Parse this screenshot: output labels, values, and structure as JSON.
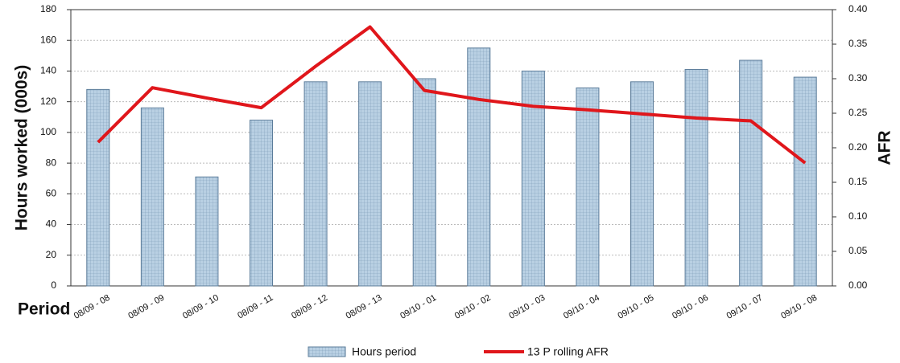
{
  "chart_data": {
    "type": "combo",
    "x_label": "Period",
    "y_label": "Hours worked (000s)",
    "y2_label": "AFR",
    "categories": [
      "08/09 - 08",
      "08/09 - 09",
      "08/09 - 10",
      "08/09 - 11",
      "08/09 - 12",
      "08/09 - 13",
      "09/10 - 01",
      "09/10 - 02",
      "09/10 - 03",
      "09/10 - 04",
      "09/10 - 05",
      "09/10 - 06",
      "09/10 - 07",
      "09/10 - 08"
    ],
    "series": [
      {
        "name": "Hours period",
        "type": "bar",
        "color": "#b9d0e3",
        "values": [
          128,
          116,
          71,
          108,
          133,
          133,
          135,
          155,
          140,
          129,
          133,
          141,
          147,
          136
        ]
      },
      {
        "name": "13 P rolling AFR",
        "type": "line",
        "axis": "y2",
        "color": "#e0161b",
        "values": [
          0.208,
          0.287,
          0.272,
          0.258,
          0.318,
          0.375,
          0.283,
          0.27,
          0.26,
          0.255,
          0.249,
          0.243,
          0.239,
          0.178
        ]
      }
    ],
    "ylim": [
      0,
      180
    ],
    "yticks": [
      0,
      20,
      40,
      60,
      80,
      100,
      120,
      140,
      160,
      180
    ],
    "y2lim": [
      0,
      0.4
    ],
    "y2ticks": [
      {
        "value": 0,
        "label": "0.00"
      },
      {
        "value": 0.05,
        "label": "0.05"
      },
      {
        "value": 0.1,
        "label": "0.10"
      },
      {
        "value": 0.15,
        "label": "0.15"
      },
      {
        "value": 0.2,
        "label": "0.20"
      },
      {
        "value": 0.25,
        "label": "0.25"
      },
      {
        "value": 0.3,
        "label": "0.30"
      },
      {
        "value": 0.35,
        "label": "0.35"
      },
      {
        "value": 0.4,
        "label": "0.40"
      }
    ],
    "grid": true,
    "legend": "bottom"
  }
}
